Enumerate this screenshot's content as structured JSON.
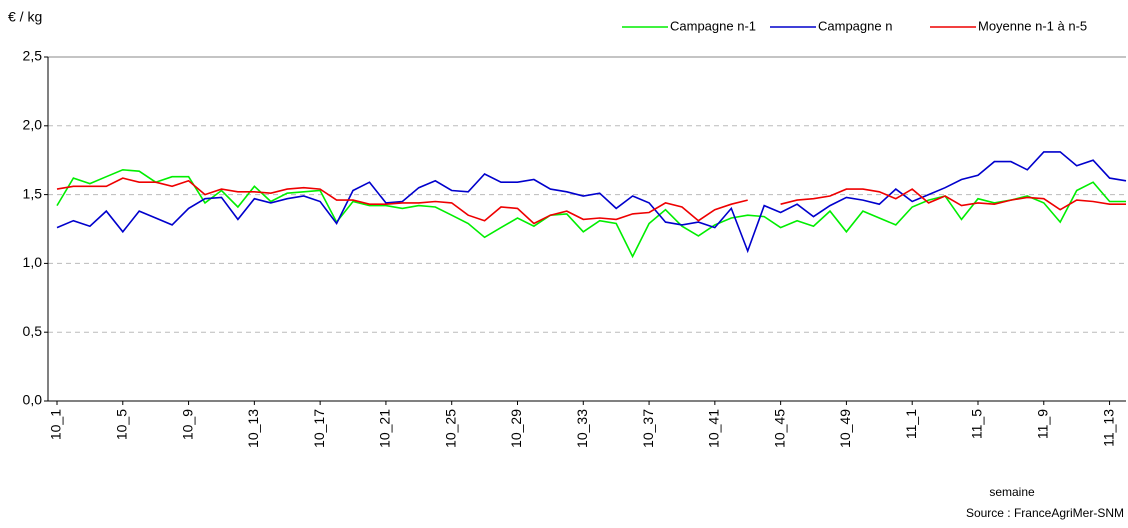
{
  "chart_data": {
    "type": "line",
    "y_label": "€ / kg",
    "x_label": "semaine",
    "source": "Source : FranceAgriMer-SNM",
    "categories": [
      "10_1",
      null,
      null,
      null,
      "10_5",
      null,
      null,
      null,
      "10_9",
      null,
      null,
      null,
      "10_13",
      null,
      null,
      null,
      "10_17",
      null,
      null,
      null,
      "10_21",
      null,
      null,
      null,
      "10_25",
      null,
      null,
      null,
      "10_29",
      null,
      null,
      null,
      "10_33",
      null,
      null,
      null,
      "10_37",
      null,
      null,
      null,
      "10_41",
      null,
      null,
      null,
      "10_45",
      null,
      null,
      null,
      "10_49",
      null,
      null,
      null,
      "11_1",
      null,
      null,
      null,
      "11_5",
      null,
      null,
      null,
      "11_9",
      null,
      null,
      null,
      "11_13",
      null
    ],
    "series": [
      {
        "name": "Campagne n-1",
        "color": "#00ee00",
        "values": [
          1.42,
          1.62,
          1.58,
          1.63,
          1.68,
          1.67,
          1.59,
          1.63,
          1.63,
          1.44,
          1.53,
          1.41,
          1.56,
          1.45,
          1.51,
          1.52,
          1.53,
          1.3,
          1.45,
          1.42,
          1.42,
          1.4,
          1.42,
          1.41,
          1.35,
          1.29,
          1.19,
          1.26,
          1.33,
          1.27,
          1.35,
          1.36,
          1.23,
          1.31,
          1.29,
          1.05,
          1.29,
          1.39,
          1.27,
          1.2,
          1.28,
          1.33,
          1.35,
          1.34,
          1.26,
          1.31,
          1.27,
          1.38,
          1.23,
          1.38,
          1.33,
          1.28,
          1.41,
          1.46,
          1.49,
          1.32,
          1.47,
          1.44,
          1.46,
          1.49,
          1.44,
          1.3,
          1.53,
          1.59,
          1.45,
          1.45
        ]
      },
      {
        "name": "Campagne n",
        "color": "#0000cc",
        "values": [
          1.26,
          1.31,
          1.27,
          1.38,
          1.23,
          1.38,
          1.33,
          1.28,
          1.4,
          1.47,
          1.48,
          1.32,
          1.47,
          1.44,
          1.47,
          1.49,
          1.45,
          1.29,
          1.53,
          1.59,
          1.44,
          1.45,
          1.55,
          1.6,
          1.53,
          1.52,
          1.65,
          1.59,
          1.59,
          1.61,
          1.54,
          1.52,
          1.49,
          1.51,
          1.4,
          1.49,
          1.44,
          1.3,
          1.28,
          1.3,
          1.26,
          1.4,
          1.09,
          1.42,
          1.37,
          1.43,
          1.34,
          1.42,
          1.48,
          1.46,
          1.43,
          1.54,
          1.45,
          1.5,
          1.55,
          1.61,
          1.64,
          1.74,
          1.74,
          1.68,
          1.81,
          1.81,
          1.71,
          1.75,
          1.62,
          1.6
        ]
      },
      {
        "name": "Moyenne n-1 à n-5",
        "color": "#ee0000",
        "values": [
          1.54,
          1.56,
          1.56,
          1.56,
          1.62,
          1.59,
          1.59,
          1.56,
          1.6,
          1.5,
          1.54,
          1.52,
          1.52,
          1.51,
          1.54,
          1.55,
          1.54,
          1.46,
          1.46,
          1.43,
          1.43,
          1.44,
          1.44,
          1.45,
          1.44,
          1.35,
          1.31,
          1.41,
          1.4,
          1.29,
          1.35,
          1.38,
          1.32,
          1.33,
          1.32,
          1.36,
          1.37,
          1.44,
          1.41,
          1.31,
          1.39,
          1.43,
          1.46,
          null,
          1.43,
          1.46,
          1.47,
          1.49,
          1.54,
          1.54,
          1.52,
          1.47,
          1.54,
          1.44,
          1.49,
          1.42,
          1.44,
          1.43,
          1.46,
          1.48,
          1.47,
          1.39,
          1.46,
          1.45,
          1.43,
          1.43
        ]
      }
    ],
    "ylim": [
      0,
      2.5
    ],
    "yticks": [
      {
        "value": 0,
        "label": "0,0"
      },
      {
        "value": 0.5,
        "label": "0,5"
      },
      {
        "value": 1,
        "label": "1,0"
      },
      {
        "value": 1.5,
        "label": "1,5"
      },
      {
        "value": 2,
        "label": "2,0"
      },
      {
        "value": 2.5,
        "label": "2,5"
      }
    ],
    "grid": true,
    "legend": "top-right"
  }
}
